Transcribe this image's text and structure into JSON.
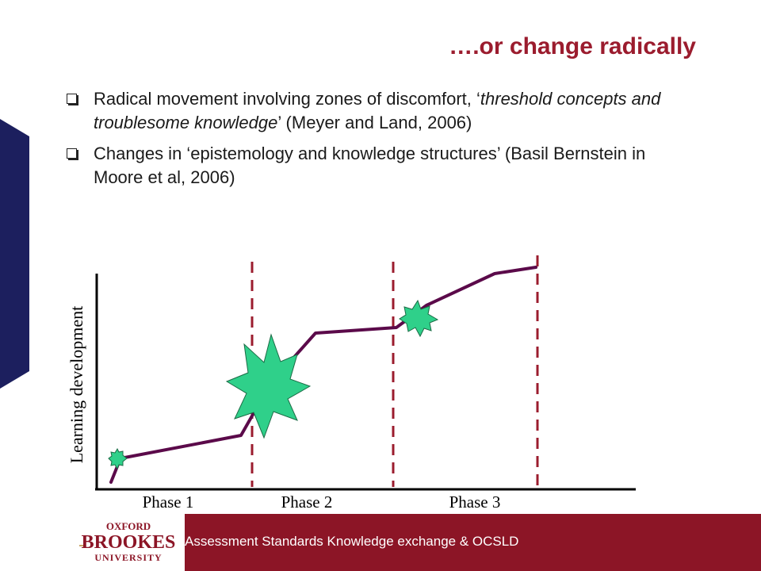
{
  "slide": {
    "title": "….or change radically"
  },
  "bullets": [
    {
      "text_normal_1": "Radical movement involving zones of discomfort, ‘",
      "text_italic": "threshold concepts and troublesome knowledge",
      "text_normal_2": "’ (Meyer and Land, 2006)"
    },
    {
      "text": "Changes in ‘epistemology and knowledge structures’ (Basil Bernstein in Moore et al, 2006)"
    }
  ],
  "diagram": {
    "y_axis_label": "Learning development",
    "phases": [
      "Phase 1",
      "Phase 2",
      "Phase 3"
    ]
  },
  "footer": {
    "text": "Assessment Standards Knowledge exchange & OCSLD",
    "logo_line1": "OXFORD",
    "logo_line2": "BROOKES",
    "logo_line3": "UNIVERSITY"
  },
  "colors": {
    "accent_red": "#9b1c2e",
    "footer_band": "#8c1526",
    "side_bar": "#1c1f5e",
    "curve": "#5b0a4a",
    "dashed": "#9b1c2e",
    "star_fill": "#2fd08a"
  }
}
